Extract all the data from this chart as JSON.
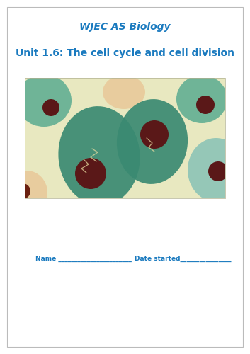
{
  "title1": "WJEC AS Biology",
  "title2": "Unit 1.6: The cell cycle and cell division",
  "title_color": "#1a7abf",
  "bg_color": "#ffffff",
  "border_color": "#bbbbbb",
  "name_label": "Name _______________________",
  "date_label": "Date started________________",
  "label_color": "#1a7abf",
  "img_bg": "#e8e8c0",
  "cell_teal_dark": "#3a8a72",
  "cell_teal_mid": "#5aab90",
  "cell_teal_light": "#80bfb5",
  "cell_peach": "#e8c898",
  "cell_nucleus": "#5a1818",
  "cell_cream": "#e8dca0",
  "title1_fontsize": 10,
  "title2_fontsize": 10
}
